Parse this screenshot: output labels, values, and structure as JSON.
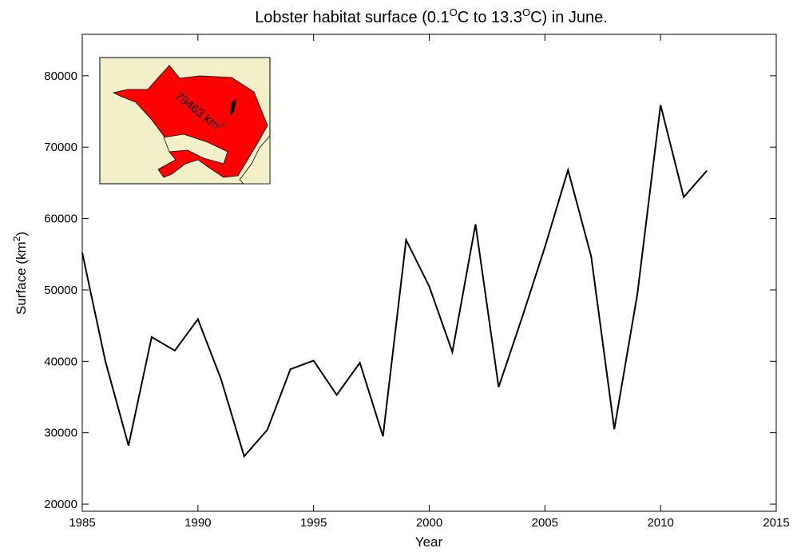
{
  "chart_data": {
    "type": "line",
    "title": [
      "Lobster habitat surface (0.1",
      "O",
      "C to 13.3",
      "O",
      "C) in June."
    ],
    "xlabel": "Year",
    "ylabel": [
      "Surface (km",
      "2",
      ")"
    ],
    "inset_annotation": [
      "79463 km",
      "2"
    ],
    "x": [
      1985,
      1986,
      1987,
      1988,
      1989,
      1990,
      1991,
      1992,
      1993,
      1994,
      1995,
      1996,
      1997,
      1998,
      1999,
      2000,
      2001,
      2002,
      2003,
      2004,
      2005,
      2006,
      2007,
      2008,
      2009,
      2010,
      2011,
      2012
    ],
    "series": [
      {
        "color": "#000000",
        "values": [
          55200,
          40000,
          28200,
          43400,
          41500,
          45900,
          37500,
          26700,
          30400,
          38900,
          40100,
          35300,
          39800,
          29500,
          57000,
          50500,
          41300,
          59200,
          36400,
          46000,
          56000,
          66800,
          54700,
          30500,
          49500,
          75900,
          63000,
          66700
        ]
      }
    ],
    "xlim": [
      1985,
      2015
    ],
    "xticks": [
      1985,
      1990,
      1995,
      2000,
      2005,
      2010,
      2015
    ],
    "ylim": [
      19000,
      85800
    ],
    "yticks": [
      20000,
      30000,
      40000,
      50000,
      60000,
      70000,
      80000
    ],
    "grid": false
  }
}
